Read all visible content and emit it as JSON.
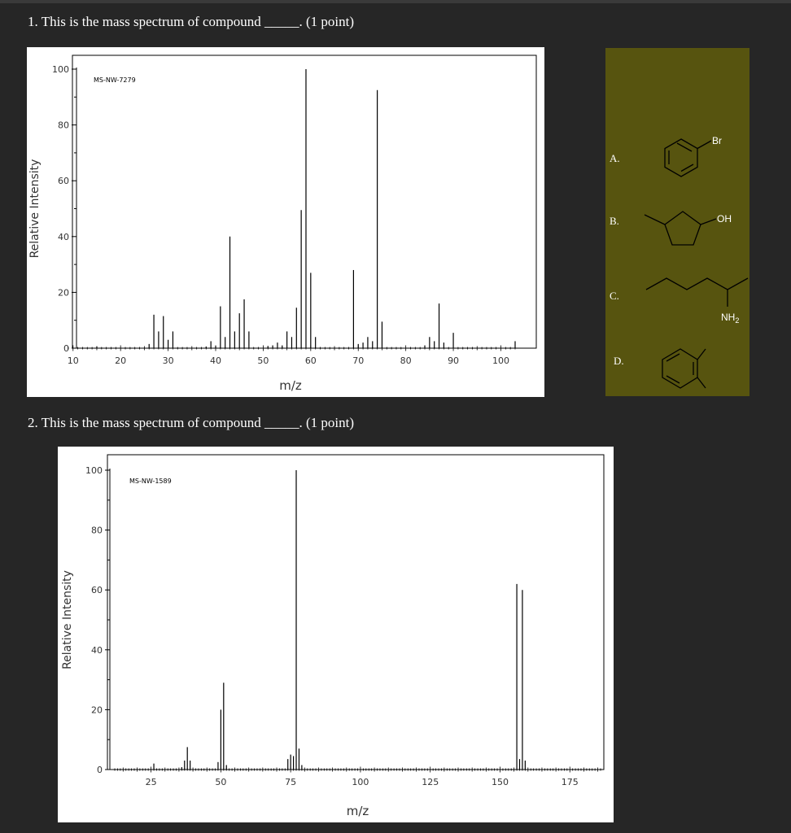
{
  "q1": {
    "text": "1. This is the mass spectrum of compound _____. (1 point)"
  },
  "q2": {
    "text": "2. This is the mass spectrum of compound _____. (1 point)"
  },
  "chart_data": [
    {
      "type": "bar",
      "code": "MS-NW-7279",
      "xlabel": "m/z",
      "ylabel": "Relative Intensity",
      "xlim": [
        8.5,
        103
      ],
      "ylim": [
        0,
        100
      ],
      "xticks": [
        10,
        20,
        30,
        40,
        50,
        60,
        70,
        80,
        90,
        100
      ],
      "yticks": [
        0,
        20,
        40,
        60,
        80,
        100
      ],
      "peaks": [
        {
          "x": 15,
          "y": 0.6
        },
        {
          "x": 26,
          "y": 1.5
        },
        {
          "x": 27,
          "y": 12
        },
        {
          "x": 28,
          "y": 6
        },
        {
          "x": 29,
          "y": 11.5
        },
        {
          "x": 30,
          "y": 3
        },
        {
          "x": 31,
          "y": 6
        },
        {
          "x": 38,
          "y": 0.6
        },
        {
          "x": 39,
          "y": 2.5
        },
        {
          "x": 40,
          "y": 0.8
        },
        {
          "x": 41,
          "y": 15
        },
        {
          "x": 42,
          "y": 4
        },
        {
          "x": 43,
          "y": 40
        },
        {
          "x": 44,
          "y": 6
        },
        {
          "x": 45,
          "y": 12.5
        },
        {
          "x": 46,
          "y": 17.5
        },
        {
          "x": 47,
          "y": 6
        },
        {
          "x": 51,
          "y": 0.8
        },
        {
          "x": 52,
          "y": 1
        },
        {
          "x": 53,
          "y": 2
        },
        {
          "x": 54,
          "y": 1
        },
        {
          "x": 55,
          "y": 6
        },
        {
          "x": 56,
          "y": 4
        },
        {
          "x": 57,
          "y": 14.5
        },
        {
          "x": 58,
          "y": 49.5
        },
        {
          "x": 59,
          "y": 100
        },
        {
          "x": 60,
          "y": 27
        },
        {
          "x": 61,
          "y": 4
        },
        {
          "x": 69,
          "y": 28
        },
        {
          "x": 70,
          "y": 1.5
        },
        {
          "x": 71,
          "y": 2
        },
        {
          "x": 72,
          "y": 4
        },
        {
          "x": 73,
          "y": 2.5
        },
        {
          "x": 74,
          "y": 92.5
        },
        {
          "x": 75,
          "y": 9.5
        },
        {
          "x": 84,
          "y": 1
        },
        {
          "x": 85,
          "y": 4
        },
        {
          "x": 86,
          "y": 2.5
        },
        {
          "x": 87,
          "y": 16
        },
        {
          "x": 88,
          "y": 2
        },
        {
          "x": 90,
          "y": 5.5
        },
        {
          "x": 103,
          "y": 2.5
        }
      ]
    },
    {
      "type": "bar",
      "code": "MS-NW-1589",
      "xlabel": "m/z",
      "ylabel": "Relative Intensity",
      "xlim": [
        12,
        186
      ],
      "ylim": [
        0,
        100
      ],
      "xticks": [
        25,
        50,
        75,
        100,
        125,
        150,
        175
      ],
      "yticks": [
        0,
        20,
        40,
        60,
        80,
        100
      ],
      "peaks": [
        {
          "x": 26,
          "y": 2
        },
        {
          "x": 36,
          "y": 0.8
        },
        {
          "x": 37,
          "y": 3
        },
        {
          "x": 38,
          "y": 7.5
        },
        {
          "x": 39,
          "y": 3
        },
        {
          "x": 49,
          "y": 2.5
        },
        {
          "x": 50,
          "y": 20
        },
        {
          "x": 51,
          "y": 29
        },
        {
          "x": 52,
          "y": 1.5
        },
        {
          "x": 74,
          "y": 3.5
        },
        {
          "x": 75,
          "y": 5
        },
        {
          "x": 76,
          "y": 4.5
        },
        {
          "x": 77,
          "y": 100
        },
        {
          "x": 78,
          "y": 7
        },
        {
          "x": 79,
          "y": 1.5
        },
        {
          "x": 156,
          "y": 62
        },
        {
          "x": 157,
          "y": 3.5
        },
        {
          "x": 158,
          "y": 60
        },
        {
          "x": 159,
          "y": 3
        }
      ]
    }
  ],
  "options": {
    "letters": [
      "A.",
      "B.",
      "C.",
      "D."
    ],
    "atom_labels": {
      "br": "Br",
      "oh": "OH",
      "nh2": "NH",
      "nh2_sub": "2"
    }
  },
  "colors": {
    "background": "#262626",
    "options_panel": "#57540f",
    "chart_bg": "#ffffff",
    "ink": "#000000"
  }
}
